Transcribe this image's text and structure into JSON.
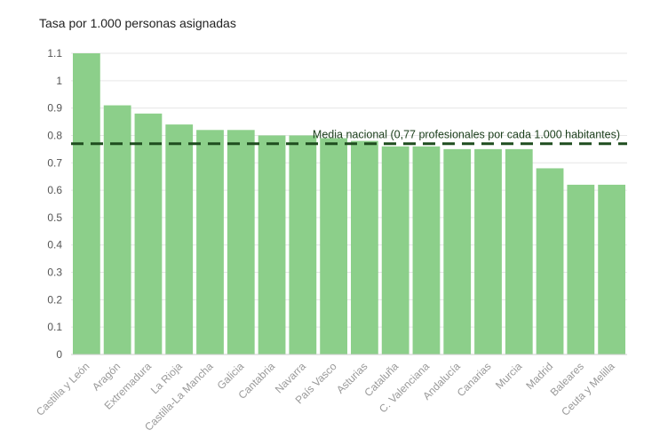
{
  "chart_data": {
    "type": "bar",
    "title": "Tasa por 1.000 personas asignadas",
    "categories": [
      "Castilla y León",
      "Aragón",
      "Extremadura",
      "La Rioja",
      "Castilla-La Mancha",
      "Galicia",
      "Cantabria",
      "Navarra",
      "País Vasco",
      "Asturias",
      "Cataluña",
      "C. Valenciana",
      "Andalucía",
      "Canarias",
      "Murcia",
      "Madrid",
      "Baleares",
      "Ceuta y Melilla"
    ],
    "values": [
      1.1,
      0.91,
      0.88,
      0.84,
      0.82,
      0.82,
      0.8,
      0.8,
      0.79,
      0.78,
      0.76,
      0.76,
      0.75,
      0.75,
      0.75,
      0.68,
      0.62,
      0.62
    ],
    "yticks": [
      "0",
      "0.1",
      "0.2",
      "0.3",
      "0.4",
      "0.5",
      "0.6",
      "0.7",
      "0.8",
      "0.9",
      "1",
      "1.1"
    ],
    "ylim": [
      0,
      1.1
    ],
    "grid": true,
    "bar_color": "#8ccf8a",
    "reference_line": {
      "value": 0.77,
      "label": "Media nacional (0,77 profesionales por cada 1.000 habitantes)",
      "color": "#1f4d1f"
    }
  }
}
